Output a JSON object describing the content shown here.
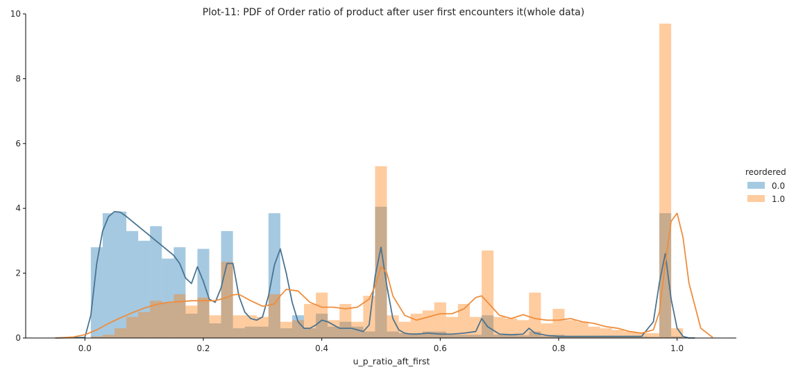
{
  "chart_data": {
    "type": "histogram+kde",
    "title": "Plot-11: PDF of Order ratio of product after user first encounters it(whole data)",
    "xlabel": "u_p_ratio_aft_first",
    "ylabel": "",
    "xlim": [
      -0.1,
      1.1
    ],
    "ylim": [
      0,
      10
    ],
    "xticks": [
      0.0,
      0.2,
      0.4,
      0.6,
      0.8,
      1.0
    ],
    "xtick_labels": [
      "0.0",
      "0.2",
      "0.4",
      "0.6",
      "0.8",
      "1.0"
    ],
    "yticks": [
      0,
      2,
      4,
      6,
      8,
      10
    ],
    "ytick_labels": [
      "0",
      "2",
      "4",
      "6",
      "8",
      "10"
    ],
    "grid": false,
    "legend": {
      "title": "reordered",
      "placement": "right"
    },
    "bin_width": 0.02,
    "bin_starts": [
      0.01,
      0.03,
      0.05,
      0.07,
      0.09,
      0.11,
      0.13,
      0.15,
      0.17,
      0.19,
      0.21,
      0.23,
      0.25,
      0.27,
      0.29,
      0.31,
      0.33,
      0.35,
      0.37,
      0.39,
      0.41,
      0.43,
      0.45,
      0.47,
      0.49,
      0.51,
      0.53,
      0.55,
      0.57,
      0.59,
      0.61,
      0.63,
      0.65,
      0.67,
      0.69,
      0.71,
      0.73,
      0.75,
      0.77,
      0.79,
      0.81,
      0.83,
      0.85,
      0.87,
      0.89,
      0.91,
      0.93,
      0.95,
      0.97,
      0.99
    ],
    "series": [
      {
        "name": "0.0",
        "color": "#1f77b4",
        "kde_color": "#4a7390",
        "bin_heights": [
          2.8,
          3.85,
          3.9,
          3.3,
          3.0,
          3.45,
          2.45,
          2.8,
          0.75,
          2.75,
          0.45,
          3.3,
          0.3,
          0.35,
          0.35,
          3.85,
          0.3,
          0.7,
          0.3,
          0.75,
          0.35,
          0.5,
          0.35,
          0.2,
          4.05,
          0.2,
          0.15,
          0.15,
          0.2,
          0.2,
          0.1,
          0.1,
          0.1,
          0.7,
          0.1,
          0.1,
          0.08,
          0.2,
          0.06,
          0.1,
          0.06,
          0.06,
          0.05,
          0.05,
          0.04,
          0.04,
          0.05,
          0.04,
          3.85,
          0.05
        ],
        "kde_x": [
          -0.05,
          0,
          0.01,
          0.02,
          0.03,
          0.04,
          0.05,
          0.06,
          0.07,
          0.08,
          0.09,
          0.1,
          0.11,
          0.12,
          0.13,
          0.14,
          0.15,
          0.16,
          0.17,
          0.18,
          0.19,
          0.2,
          0.21,
          0.22,
          0.23,
          0.24,
          0.25,
          0.26,
          0.27,
          0.28,
          0.29,
          0.3,
          0.31,
          0.32,
          0.33,
          0.34,
          0.35,
          0.36,
          0.37,
          0.38,
          0.39,
          0.4,
          0.41,
          0.42,
          0.43,
          0.44,
          0.45,
          0.46,
          0.47,
          0.48,
          0.49,
          0.5,
          0.51,
          0.52,
          0.53,
          0.54,
          0.55,
          0.56,
          0.58,
          0.6,
          0.62,
          0.64,
          0.66,
          0.67,
          0.68,
          0.7,
          0.72,
          0.74,
          0.75,
          0.76,
          0.78,
          0.8,
          0.82,
          0.84,
          0.86,
          0.88,
          0.9,
          0.92,
          0.94,
          0.96,
          0.97,
          0.98,
          0.99,
          1.0,
          1.01,
          1.02,
          1.03
        ],
        "kde_y": [
          0,
          0.02,
          0.7,
          2.3,
          3.3,
          3.75,
          3.9,
          3.88,
          3.75,
          3.6,
          3.45,
          3.3,
          3.15,
          3.0,
          2.85,
          2.7,
          2.55,
          2.3,
          1.85,
          1.68,
          2.2,
          1.75,
          1.2,
          1.1,
          1.55,
          2.3,
          2.3,
          1.3,
          0.8,
          0.6,
          0.55,
          0.65,
          1.3,
          2.25,
          2.75,
          2.0,
          1.1,
          0.5,
          0.3,
          0.3,
          0.4,
          0.55,
          0.5,
          0.4,
          0.3,
          0.3,
          0.3,
          0.25,
          0.2,
          0.4,
          1.9,
          2.8,
          1.6,
          0.6,
          0.25,
          0.15,
          0.12,
          0.12,
          0.15,
          0.12,
          0.12,
          0.15,
          0.2,
          0.6,
          0.35,
          0.12,
          0.1,
          0.12,
          0.3,
          0.15,
          0.08,
          0.05,
          0.05,
          0.05,
          0.05,
          0.05,
          0.05,
          0.05,
          0.05,
          0.5,
          1.7,
          2.6,
          1.2,
          0.3,
          0.05,
          0.0,
          0.0
        ]
      },
      {
        "name": "1.0",
        "color": "#ff7f0e",
        "kde_color": "#ef8d3c",
        "bin_heights": [
          0.05,
          0.1,
          0.3,
          0.65,
          0.8,
          1.15,
          1.1,
          1.35,
          1.0,
          1.25,
          0.7,
          2.35,
          0.7,
          0.7,
          0.65,
          1.35,
          0.5,
          0.55,
          1.05,
          1.4,
          0.55,
          1.05,
          0.5,
          1.3,
          5.3,
          0.7,
          0.5,
          0.75,
          0.85,
          1.1,
          0.65,
          1.05,
          0.65,
          2.7,
          0.65,
          0.6,
          0.55,
          1.4,
          0.45,
          0.9,
          0.55,
          0.5,
          0.35,
          0.3,
          0.25,
          0.2,
          0.15,
          0.15,
          9.7,
          0.3
        ],
        "kde_x": [
          -0.05,
          -0.02,
          0,
          0.02,
          0.04,
          0.06,
          0.08,
          0.1,
          0.12,
          0.14,
          0.16,
          0.18,
          0.2,
          0.22,
          0.24,
          0.25,
          0.26,
          0.28,
          0.3,
          0.32,
          0.33,
          0.34,
          0.36,
          0.38,
          0.4,
          0.42,
          0.44,
          0.46,
          0.48,
          0.49,
          0.5,
          0.51,
          0.52,
          0.54,
          0.56,
          0.58,
          0.6,
          0.62,
          0.64,
          0.66,
          0.67,
          0.68,
          0.7,
          0.72,
          0.74,
          0.76,
          0.78,
          0.8,
          0.82,
          0.84,
          0.86,
          0.88,
          0.9,
          0.92,
          0.94,
          0.96,
          0.97,
          0.98,
          0.99,
          1.0,
          1.01,
          1.02,
          1.04,
          1.06
        ],
        "kde_y": [
          0,
          0.03,
          0.1,
          0.25,
          0.45,
          0.62,
          0.78,
          0.92,
          1.03,
          1.1,
          1.12,
          1.15,
          1.15,
          1.15,
          1.25,
          1.33,
          1.35,
          1.15,
          0.98,
          1.05,
          1.3,
          1.5,
          1.45,
          1.1,
          0.95,
          0.95,
          0.9,
          0.95,
          1.2,
          1.6,
          2.2,
          2.0,
          1.3,
          0.7,
          0.55,
          0.65,
          0.75,
          0.75,
          0.9,
          1.25,
          1.3,
          1.1,
          0.7,
          0.6,
          0.72,
          0.6,
          0.55,
          0.55,
          0.6,
          0.5,
          0.45,
          0.35,
          0.3,
          0.2,
          0.15,
          0.25,
          0.8,
          2.3,
          3.6,
          3.85,
          3.1,
          1.7,
          0.3,
          0.02
        ]
      }
    ]
  }
}
